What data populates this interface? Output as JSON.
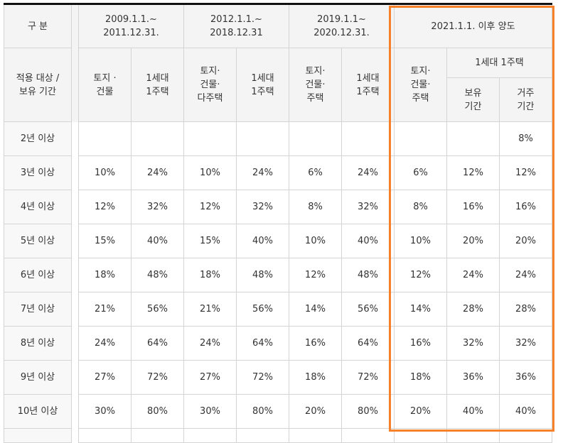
{
  "header": {
    "category": "구 분",
    "target": "적용 대상 / 보유 기간",
    "periods": [
      "2009.1.1.~ 2011.12.31.",
      "2012.1.1.~ 2018.12.31",
      "2019.1.1~ 2020.12.31.",
      "2021.1.1. 이후 양도"
    ],
    "sub": [
      "토지 · 건물",
      "1세대 1주택",
      "토지· 건물· 다주택",
      "1세대 1주택",
      "토지· 건물· 주택",
      "1세대 1주택",
      "토지· 건물· 주택"
    ],
    "one_house": "1세대 1주택",
    "holding": "보유 기간",
    "residence": "거주 기간"
  },
  "rows": [
    {
      "label": "2년 이상",
      "v": [
        "",
        "",
        "",
        "",
        "",
        "",
        "",
        "",
        "8%"
      ]
    },
    {
      "label": "3년 이상",
      "v": [
        "10%",
        "24%",
        "10%",
        "24%",
        "6%",
        "24%",
        "6%",
        "12%",
        "12%"
      ]
    },
    {
      "label": "4년 이상",
      "v": [
        "12%",
        "32%",
        "12%",
        "32%",
        "8%",
        "32%",
        "8%",
        "16%",
        "16%"
      ]
    },
    {
      "label": "5년 이상",
      "v": [
        "15%",
        "40%",
        "15%",
        "40%",
        "10%",
        "40%",
        "10%",
        "20%",
        "20%"
      ]
    },
    {
      "label": "6년 이상",
      "v": [
        "18%",
        "48%",
        "18%",
        "48%",
        "12%",
        "48%",
        "12%",
        "24%",
        "24%"
      ]
    },
    {
      "label": "7년 이상",
      "v": [
        "21%",
        "56%",
        "21%",
        "56%",
        "14%",
        "56%",
        "14%",
        "28%",
        "28%"
      ]
    },
    {
      "label": "8년 이상",
      "v": [
        "24%",
        "64%",
        "24%",
        "64%",
        "16%",
        "64%",
        "16%",
        "32%",
        "32%"
      ]
    },
    {
      "label": "9년 이상",
      "v": [
        "27%",
        "72%",
        "27%",
        "72%",
        "18%",
        "72%",
        "18%",
        "36%",
        "36%"
      ]
    },
    {
      "label": "10년 이상",
      "v": [
        "30%",
        "80%",
        "30%",
        "80%",
        "20%",
        "80%",
        "20%",
        "40%",
        "40%"
      ]
    }
  ]
}
